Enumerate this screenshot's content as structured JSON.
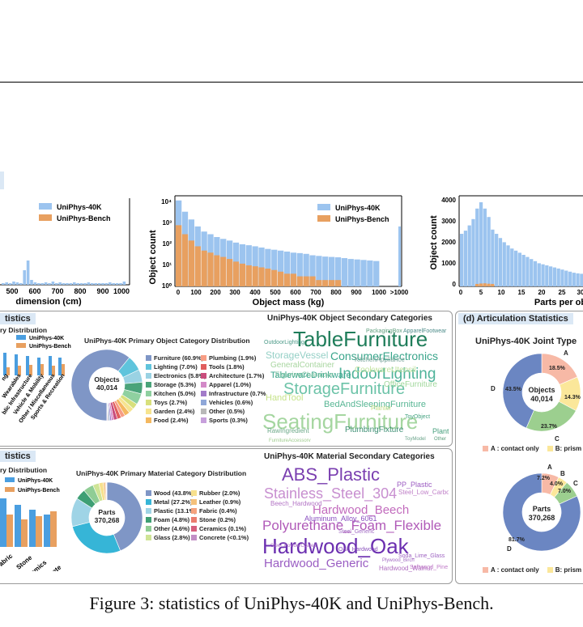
{
  "caption": "Figure 3: statistics of UniPhys-40K and UniPhys-Bench.",
  "colors": {
    "uniphys40k": "#9cc4ef",
    "bench": "#e8a060",
    "panel_header": "#dbe8f5"
  },
  "top_charts": {
    "dimension": {
      "xlabel": "dimension (cm)",
      "ticks": [
        "500",
        "600",
        "700",
        "800",
        "900",
        "1000"
      ],
      "legend": [
        "UniPhys-40K",
        "UniPhys-Bench"
      ]
    },
    "mass": {
      "xlabel": "Object mass (kg)",
      "ylabel": "Object count",
      "yticks": [
        "10⁴",
        "10³",
        "10²",
        "10¹",
        "10⁰"
      ],
      "xticks": [
        "0",
        "100",
        "200",
        "300",
        "400",
        "500",
        "600",
        "700",
        "800",
        "900",
        "1000",
        ">1000"
      ],
      "legend": [
        "UniPhys-40K",
        "UniPhys-Bench"
      ]
    },
    "parts": {
      "xlabel": "Parts per ob",
      "ylabel": "Object count",
      "yticks": [
        "4000",
        "3000",
        "2000",
        "1000",
        "0"
      ],
      "xticks": [
        "0",
        "5",
        "10",
        "15",
        "20",
        "25",
        "30"
      ]
    }
  },
  "chart_data": [
    {
      "type": "bar",
      "title": "",
      "xlabel": "Object mass (kg)",
      "ylabel": "Object count",
      "yscale": "log",
      "series": [
        {
          "name": "UniPhys-40K",
          "values": [
            12000,
            3500,
            1500,
            700,
            400,
            300,
            220,
            180,
            150,
            120,
            100,
            90,
            80,
            70,
            60,
            55,
            50,
            45,
            40,
            38,
            35,
            30,
            28,
            26,
            25,
            24,
            22,
            20,
            19,
            18,
            17,
            16
          ]
        },
        {
          "name": "UniPhys-Bench",
          "values": [
            800,
            300,
            150,
            80,
            50,
            40,
            30,
            25,
            20,
            15,
            12,
            10,
            9,
            8,
            7,
            6,
            5,
            4,
            4,
            3,
            3,
            3,
            2,
            2,
            2,
            2,
            1,
            1,
            1,
            1,
            1,
            1
          ]
        }
      ]
    },
    {
      "type": "bar",
      "title": "",
      "xlabel": "Parts per ob",
      "ylabel": "Object count",
      "ylim": [
        0,
        4000
      ],
      "series": [
        {
          "name": "UniPhys-40K",
          "values": [
            2500,
            2650,
            2900,
            3200,
            3700,
            4000,
            3700,
            3300,
            2700,
            2500,
            2300,
            2100,
            1950,
            1800,
            1700,
            1600,
            1500,
            1400,
            1300,
            1200,
            1100,
            1050,
            1000,
            950,
            900,
            850,
            800,
            750,
            700,
            650,
            620,
            600
          ]
        }
      ]
    },
    {
      "type": "pie",
      "title": "UniPhys-40K Primary Object Category Distribution",
      "center_label": "Objects",
      "center_value": "40,014",
      "labels": [
        "Furniture",
        "Lighting",
        "Electronics",
        "Storage",
        "Kitchen",
        "Toys",
        "Garden",
        "Food",
        "Plumbing",
        "Tools",
        "Architecture",
        "Apparel",
        "Infrastructure",
        "Vehicles",
        "Other",
        "Sports"
      ],
      "values": [
        60.9,
        7.0,
        5.8,
        5.3,
        5.0,
        2.7,
        2.4,
        2.4,
        1.9,
        1.8,
        1.7,
        1.0,
        0.7,
        0.6,
        0.5,
        0.3
      ]
    },
    {
      "type": "pie",
      "title": "UniPhys-40K Primary Material Category Distribution",
      "center_label": "Parts",
      "center_value": "370,268",
      "labels": [
        "Wood",
        "Metal",
        "Plastic",
        "Foam",
        "Other",
        "Glass",
        "Rubber",
        "Leather",
        "Fabric",
        "Stone",
        "Ceramics",
        "Concrete"
      ],
      "values": [
        43.8,
        27.2,
        13.1,
        4.8,
        4.6,
        2.8,
        2.0,
        0.9,
        0.4,
        0.2,
        0.1,
        0.05
      ]
    },
    {
      "type": "pie",
      "title": "UniPhys-40K Joint Type",
      "center_label": "Objects",
      "center_value": "40,014",
      "labels": [
        "A",
        "B",
        "C",
        "D"
      ],
      "values": [
        18.5,
        14.3,
        23.7,
        43.5
      ]
    },
    {
      "type": "pie",
      "title": "",
      "center_label": "Parts",
      "center_value": "370,268",
      "labels": [
        "A",
        "B",
        "C",
        "D"
      ],
      "values": [
        7.2,
        4.0,
        7.0,
        81.7
      ]
    }
  ],
  "panel_b": {
    "header": "tistics",
    "sub_title": "ry Distribution",
    "legend": [
      "UniPhys-40K",
      "UniPhys-Bench"
    ],
    "bar_labels": [
      "ng",
      "Wearables",
      "blic Infrastructure",
      "Vehicle & Mobility",
      "Other / Miscellaneous",
      "Sports & Recreation"
    ],
    "pie_title": "UniPhys-40K Primary Object Category Distribution",
    "pie_center_label": "Objects",
    "pie_center_value": "40,014",
    "legend_left": [
      "Furniture (60.9%)",
      "Lighting (7.0%)",
      "Electronics (5.8%)",
      "Storage (5.3%)",
      "Kitchen (5.0%)",
      "Toys (2.7%)",
      "Garden (2.4%)",
      "Food (2.4%)"
    ],
    "legend_right": [
      "Plumbing (1.9%)",
      "Tools (1.8%)",
      "Architecture (1.7%)",
      "Apparel (1.0%)",
      "Infrastructure (0.7%",
      "Vehicles (0.6%)",
      "Other (0.5%)",
      "Sports (0.3%)"
    ],
    "colors_left": [
      "#7f96c6",
      "#5fc4dc",
      "#9ad2e3",
      "#4aa37a",
      "#8fd0a0",
      "#d8e07c",
      "#f6e48f",
      "#f4b860"
    ],
    "colors_right": [
      "#f79d84",
      "#e05d5d",
      "#c94d7d",
      "#d38ac8",
      "#a27bc9",
      "#8fa7d8",
      "#b8b8b8",
      "#c7a0dc"
    ],
    "wordcloud_title": "UniPhys-40K Object Secondary Categories",
    "words": [
      {
        "t": "TableFurniture",
        "c": "#1f7d5a"
      },
      {
        "t": "StorageVessel",
        "c": "#95d0c6"
      },
      {
        "t": "ConsumerElectronics",
        "c": "#3aa58b"
      },
      {
        "t": "IndoorLighting",
        "c": "#4fb39a"
      },
      {
        "t": "TablewareDrinkware",
        "c": "#37a48c"
      },
      {
        "t": "StorageFurniture",
        "c": "#6cc3a8"
      },
      {
        "t": "BedAndSleepingFurniture",
        "c": "#58b694"
      },
      {
        "t": "SeatingFurniture",
        "c": "#a5d6a0"
      },
      {
        "t": "PlumbingFixture",
        "c": "#3e8f74"
      },
      {
        "t": "GeneralContainer",
        "c": "#a8d6a0"
      },
      {
        "t": "FigurineCharacter",
        "c": "#7fc3a2"
      },
      {
        "t": "CookwareUtensil",
        "c": "#c2e39e"
      },
      {
        "t": "OfficeFurniture",
        "c": "#a1d89c"
      },
      {
        "t": "KitchenAppliance",
        "c": "#7aa59a"
      },
      {
        "t": "OutdoorLighting",
        "c": "#4c9a88"
      },
      {
        "t": "HandTool",
        "c": "#c6e38a"
      },
      {
        "t": "RawIngredient",
        "c": "#6ea98a"
      },
      {
        "t": "Plant",
        "c": "#47a07d"
      },
      {
        "t": "ToyObject",
        "c": "#46a381"
      },
      {
        "t": "ApparelFootwear",
        "c": "#4d8c8a"
      },
      {
        "t": "PackagingBox",
        "c": "#5e9e7d"
      },
      {
        "t": "Planter",
        "c": "#c8e08a"
      },
      {
        "t": "FurnitureAccessory",
        "c": "#a0cc8e"
      },
      {
        "t": "ToyModel",
        "c": "#6aa38a"
      },
      {
        "t": "Other",
        "c": "#5e9e7d"
      }
    ]
  },
  "panel_c": {
    "header": "tistics",
    "sub_title": "ry Distribution",
    "legend": [
      "UniPhys-40K",
      "UniPhys-Bench"
    ],
    "bar_labels": [
      "abric",
      "Stone",
      "Ceramics",
      "Concrete"
    ],
    "pie_title": "UniPhys-40K Primary Material Category Distribution",
    "pie_center_label": "Parts",
    "pie_center_value": "370,268",
    "legend_left": [
      "Wood (43.8%)",
      "Metal (27.2%)",
      "Plastic (13.1%)",
      "Foam (4.8%)",
      "Other (4.6%)",
      "Glass (2.8%)"
    ],
    "legend_right": [
      "Rubber (2.0%)",
      "Leather (0.9%)",
      "Fabric (0.4%)",
      "Stone (0.2%)",
      "Ceramics (0.1%)",
      "Concrete (<0.1%)"
    ],
    "colors_left": [
      "#7f96c6",
      "#36b5d7",
      "#9fd4e6",
      "#3e9f74",
      "#8fcd95",
      "#cfe496"
    ],
    "colors_right": [
      "#f7e08d",
      "#f4c07a",
      "#f5a37e",
      "#ea7d6f",
      "#d65f7d",
      "#c28ec5"
    ],
    "wordcloud_title": "UniPhys-40K Material Secondary Categories",
    "words": [
      {
        "t": "ABS_Plastic",
        "c": "#7a3fb0"
      },
      {
        "t": "Stainless_Steel_304",
        "c": "#c88fd0"
      },
      {
        "t": "Hardwood_Beech",
        "c": "#c26bbd"
      },
      {
        "t": "Polyurethane_Foam_Flexible",
        "c": "#b05ab8"
      },
      {
        "t": "Hardwood_Oak",
        "c": "#6b2fb0"
      },
      {
        "t": "Hardwood_Generic",
        "c": "#9a5dc3"
      },
      {
        "t": "Aluminum_Alloy_6061",
        "c": "#8a4fc0"
      },
      {
        "t": "PP_Plastic",
        "c": "#9c5cc2"
      },
      {
        "t": "Steel_Low_Carbon",
        "c": "#c080c8"
      },
      {
        "t": "Steel_PowderCoated",
        "c": "#a870c4"
      },
      {
        "t": "Oak_Hardwood",
        "c": "#8a52bd"
      },
      {
        "t": "Soda_Lime_Glass",
        "c": "#9d62c1"
      },
      {
        "t": "Hardwood_Walnut",
        "c": "#b06ec0"
      },
      {
        "t": "Steel_Generic",
        "c": "#a26cc4"
      },
      {
        "t": "Softwood_Pine",
        "c": "#c07bc8"
      },
      {
        "t": "Beech_Hardwood",
        "c": "#b374c5"
      },
      {
        "t": "Plywood_Birch",
        "c": "#a36ac3"
      }
    ]
  },
  "panel_d": {
    "header": "(d) Articulation Statistics",
    "title": "UniPhys-40K Joint Type",
    "pie1_center_label": "Objects",
    "pie1_center_value": "40,014",
    "pie1_labels": [
      "A",
      "D",
      "C"
    ],
    "pie1_pct": [
      "18.5%",
      "14.3%",
      "23.7%",
      "43.5%"
    ],
    "pie2_center_label": "Parts",
    "pie2_center_value": "370,268",
    "pie2_labels": [
      "A",
      "B",
      "C",
      "D"
    ],
    "pie2_pct": [
      "7.2%",
      "4.0%",
      "7.0%",
      "81.7%"
    ],
    "legend_a": "A : contact only",
    "legend_b": "B: prism",
    "colors": [
      "#f7b9a6",
      "#fbe79a",
      "#9ccf8f",
      "#6b86c2"
    ]
  }
}
